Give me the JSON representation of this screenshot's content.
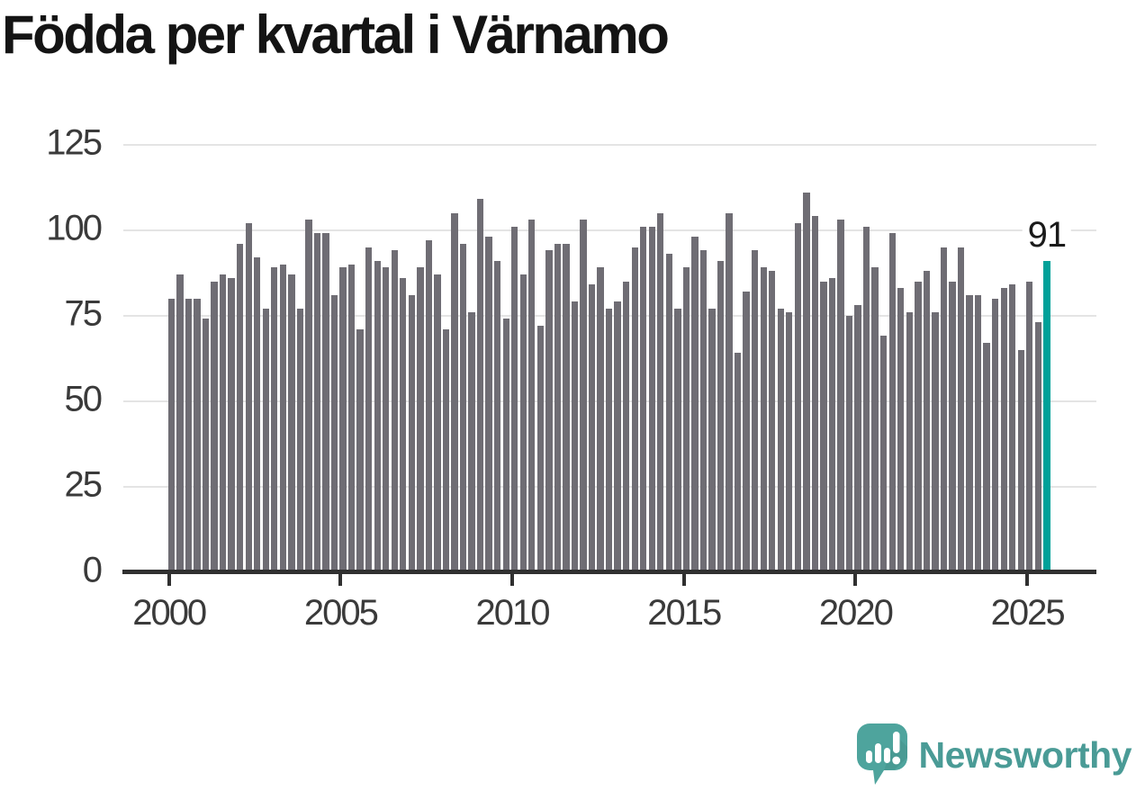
{
  "title": "Födda per kvartal i Värnamo",
  "annotation": {
    "label": "91"
  },
  "logo": {
    "text": "Newsworthy",
    "icon": "newsworthy-speech-bubble-barchart-icon",
    "icon_color": "#4ea49d",
    "text_color": "#4a9b96"
  },
  "colors": {
    "bar": "#6f6d74",
    "highlight": "#00a199",
    "gridline": "#e4e4e4",
    "axis": "#303030",
    "title": "#141414",
    "tick_label": "#3a3a3a"
  },
  "chart_data": {
    "type": "bar",
    "title": "Födda per kvartal i Värnamo",
    "xlabel": "",
    "ylabel": "",
    "x_start": "2000-Q1",
    "x_end": "2025-Q3",
    "x_frequency": "quarterly",
    "values": [
      80,
      87,
      80,
      80,
      74,
      85,
      87,
      86,
      96,
      102,
      92,
      77,
      89,
      90,
      87,
      77,
      103,
      99,
      99,
      81,
      89,
      90,
      71,
      95,
      91,
      89,
      94,
      86,
      81,
      89,
      97,
      87,
      71,
      105,
      96,
      76,
      109,
      98,
      91,
      74,
      101,
      87,
      103,
      72,
      94,
      96,
      96,
      79,
      103,
      84,
      89,
      77,
      79,
      85,
      95,
      101,
      101,
      105,
      93,
      77,
      89,
      98,
      94,
      77,
      91,
      105,
      64,
      82,
      94,
      89,
      88,
      77,
      76,
      102,
      111,
      104,
      85,
      86,
      103,
      75,
      78,
      101,
      89,
      69,
      99,
      83,
      76,
      85,
      88,
      76,
      95,
      85,
      95,
      81,
      81,
      67,
      80,
      83,
      84,
      65,
      85,
      73,
      91
    ],
    "highlight_last": true,
    "highlight_label": "91",
    "y_ticks": [
      0,
      25,
      50,
      75,
      100,
      125
    ],
    "x_ticks": [
      2000,
      2005,
      2010,
      2015,
      2020,
      2025
    ],
    "ylim": [
      0,
      125
    ],
    "grid": "horizontal",
    "legend": "none"
  }
}
